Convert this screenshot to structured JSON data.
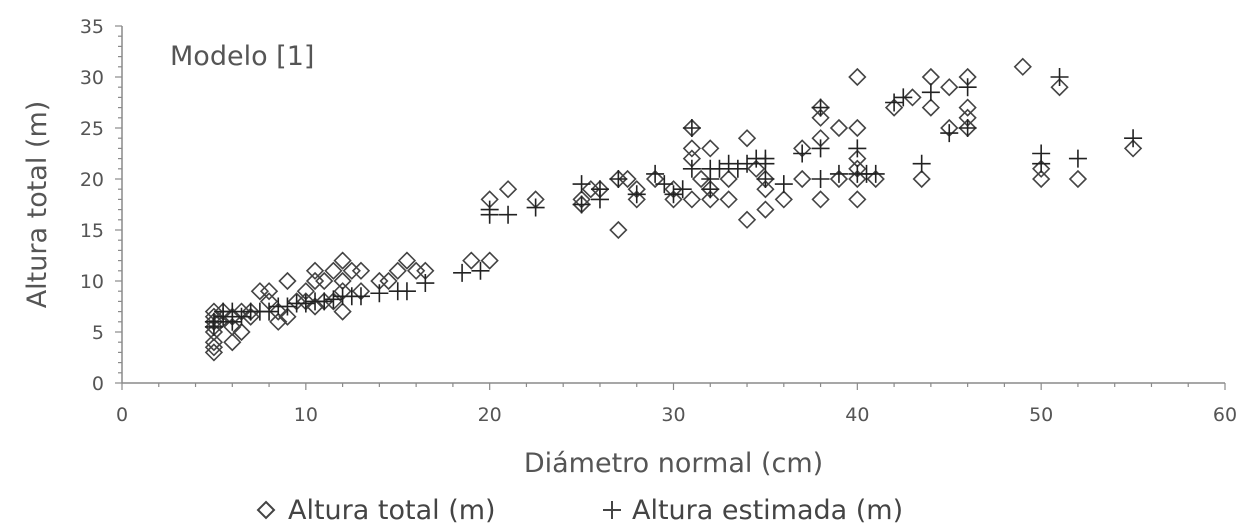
{
  "chart_data": {
    "type": "scatter",
    "title": "",
    "annotation": "Modelo [1]",
    "xlabel": "Diámetro normal (cm)",
    "ylabel": "Altura total (m)",
    "xlim": [
      0,
      60
    ],
    "ylim": [
      0,
      35
    ],
    "xticks": [
      "0",
      "10",
      "20",
      "30",
      "40",
      "50",
      "60"
    ],
    "yticks": [
      "0",
      "5",
      "10",
      "15",
      "20",
      "25",
      "30",
      "35"
    ],
    "grid": false,
    "legend_position": "bottom",
    "marker_color": "#444444",
    "series": [
      {
        "name": "Altura total (m)",
        "marker": "diamond",
        "points": [
          [
            5,
            3
          ],
          [
            5,
            3.5
          ],
          [
            5,
            4
          ],
          [
            5,
            5
          ],
          [
            5,
            5.5
          ],
          [
            5,
            6
          ],
          [
            5,
            6.5
          ],
          [
            5,
            7
          ],
          [
            5.3,
            6
          ],
          [
            5.5,
            7
          ],
          [
            6,
            4
          ],
          [
            6,
            5.5
          ],
          [
            6,
            6.5
          ],
          [
            6.5,
            5
          ],
          [
            6.5,
            7
          ],
          [
            7,
            6.5
          ],
          [
            7,
            7
          ],
          [
            7.5,
            9
          ],
          [
            8,
            8
          ],
          [
            8,
            9
          ],
          [
            8.5,
            6
          ],
          [
            8.5,
            7
          ],
          [
            9,
            10
          ],
          [
            9,
            6.5
          ],
          [
            9.5,
            8
          ],
          [
            10,
            9
          ],
          [
            10,
            8
          ],
          [
            10.5,
            7.5
          ],
          [
            10.5,
            11
          ],
          [
            10.5,
            10
          ],
          [
            11,
            8
          ],
          [
            11,
            10
          ],
          [
            11.5,
            8
          ],
          [
            11.5,
            11
          ],
          [
            12,
            12
          ],
          [
            12,
            7
          ],
          [
            12,
            9
          ],
          [
            12,
            10
          ],
          [
            12.5,
            11
          ],
          [
            13,
            9
          ],
          [
            13,
            11
          ],
          [
            14,
            10
          ],
          [
            14.5,
            10
          ],
          [
            15,
            11
          ],
          [
            15.5,
            12
          ],
          [
            16,
            11
          ],
          [
            16.5,
            11
          ],
          [
            19,
            12
          ],
          [
            20,
            18
          ],
          [
            20,
            12
          ],
          [
            21,
            19
          ],
          [
            22.5,
            18
          ],
          [
            25,
            17.5
          ],
          [
            25,
            18
          ],
          [
            25.5,
            19
          ],
          [
            26,
            19
          ],
          [
            27,
            20
          ],
          [
            27,
            15
          ],
          [
            27.5,
            20
          ],
          [
            28,
            18
          ],
          [
            28,
            19
          ],
          [
            29,
            20
          ],
          [
            30,
            18
          ],
          [
            30,
            19
          ],
          [
            31,
            25
          ],
          [
            31,
            23
          ],
          [
            31,
            22
          ],
          [
            31,
            18
          ],
          [
            31.5,
            20
          ],
          [
            32,
            23
          ],
          [
            32,
            19
          ],
          [
            32,
            18
          ],
          [
            33,
            20
          ],
          [
            33,
            18
          ],
          [
            34,
            24
          ],
          [
            34,
            16
          ],
          [
            34.5,
            21
          ],
          [
            35,
            19
          ],
          [
            35,
            20
          ],
          [
            35,
            17
          ],
          [
            36,
            18
          ],
          [
            37,
            23
          ],
          [
            37,
            20
          ],
          [
            38,
            27
          ],
          [
            38,
            26
          ],
          [
            38,
            24
          ],
          [
            38,
            18
          ],
          [
            39,
            25
          ],
          [
            39,
            20
          ],
          [
            40,
            30
          ],
          [
            40,
            25
          ],
          [
            40,
            22
          ],
          [
            40,
            21
          ],
          [
            40,
            20
          ],
          [
            40,
            18
          ],
          [
            41,
            20
          ],
          [
            42,
            27
          ],
          [
            43,
            28
          ],
          [
            43.5,
            20
          ],
          [
            44,
            30
          ],
          [
            44,
            27
          ],
          [
            45,
            29
          ],
          [
            45,
            25
          ],
          [
            46,
            30
          ],
          [
            46,
            27
          ],
          [
            46,
            26
          ],
          [
            46,
            25
          ],
          [
            49,
            31
          ],
          [
            50,
            20
          ],
          [
            50,
            21
          ],
          [
            51,
            29
          ],
          [
            52,
            20
          ],
          [
            55,
            23
          ]
        ]
      },
      {
        "name": "Altura estimada (m)",
        "marker": "plus",
        "points": [
          [
            5,
            5.5
          ],
          [
            5,
            6
          ],
          [
            5.5,
            6.5
          ],
          [
            5.5,
            7
          ],
          [
            6,
            6
          ],
          [
            6,
            7
          ],
          [
            6.5,
            6.5
          ],
          [
            7,
            7
          ],
          [
            7.5,
            7
          ],
          [
            8,
            7
          ],
          [
            8.5,
            7.5
          ],
          [
            9,
            7.5
          ],
          [
            9.5,
            7.8
          ],
          [
            10,
            7.8
          ],
          [
            10.5,
            8
          ],
          [
            11,
            8
          ],
          [
            11.5,
            8.2
          ],
          [
            12,
            8.5
          ],
          [
            12.5,
            8.5
          ],
          [
            13,
            8.5
          ],
          [
            14,
            8.8
          ],
          [
            15,
            9
          ],
          [
            15.5,
            9
          ],
          [
            16.5,
            9.8
          ],
          [
            18.5,
            10.8
          ],
          [
            19.5,
            11
          ],
          [
            20,
            16.5
          ],
          [
            20,
            17
          ],
          [
            21,
            16.5
          ],
          [
            22.5,
            17.2
          ],
          [
            25,
            17.5
          ],
          [
            25,
            19.5
          ],
          [
            26,
            18
          ],
          [
            26,
            19
          ],
          [
            27,
            20
          ],
          [
            28,
            18.5
          ],
          [
            29,
            20.5
          ],
          [
            29.5,
            19.5
          ],
          [
            30,
            18.5
          ],
          [
            30.5,
            19
          ],
          [
            31,
            21
          ],
          [
            31,
            25
          ],
          [
            32,
            21
          ],
          [
            32,
            20
          ],
          [
            32,
            19
          ],
          [
            32.5,
            21
          ],
          [
            33,
            21.5
          ],
          [
            33.5,
            21
          ],
          [
            34,
            21.5
          ],
          [
            34.5,
            22
          ],
          [
            35,
            20
          ],
          [
            35,
            21.5
          ],
          [
            35,
            22
          ],
          [
            36,
            19.5
          ],
          [
            37,
            22.5
          ],
          [
            38,
            23
          ],
          [
            38,
            27
          ],
          [
            38,
            20
          ],
          [
            39,
            20.5
          ],
          [
            40,
            20.5
          ],
          [
            40,
            23
          ],
          [
            40.5,
            20.5
          ],
          [
            41,
            20.5
          ],
          [
            42,
            27.5
          ],
          [
            42.5,
            28
          ],
          [
            43.5,
            21.5
          ],
          [
            44,
            28.5
          ],
          [
            45,
            24.5
          ],
          [
            46,
            25
          ],
          [
            46,
            29
          ],
          [
            50,
            21.5
          ],
          [
            50,
            22.5
          ],
          [
            51,
            30
          ],
          [
            52,
            22
          ],
          [
            55,
            24
          ]
        ]
      }
    ]
  }
}
